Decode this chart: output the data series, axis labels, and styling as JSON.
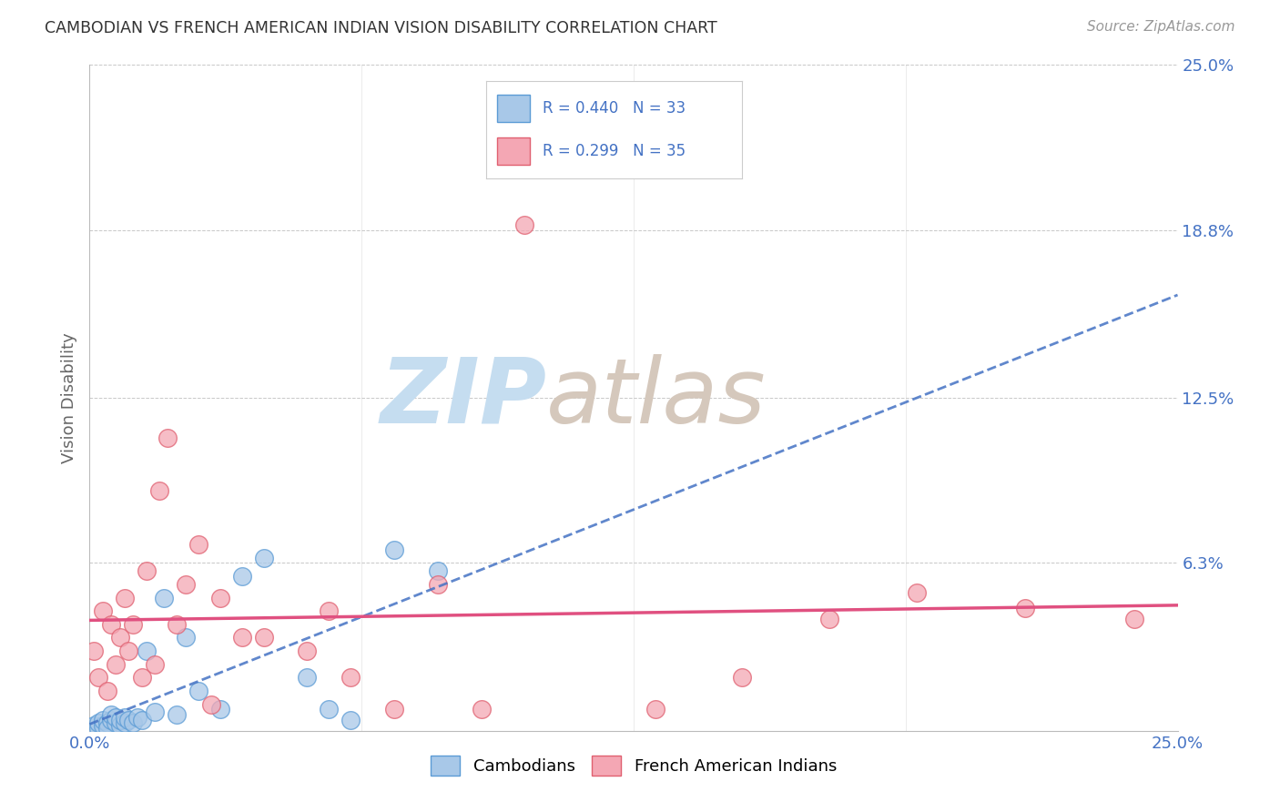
{
  "title": "CAMBODIAN VS FRENCH AMERICAN INDIAN VISION DISABILITY CORRELATION CHART",
  "source": "Source: ZipAtlas.com",
  "ylabel": "Vision Disability",
  "xlim": [
    0.0,
    0.25
  ],
  "ylim": [
    0.0,
    0.25
  ],
  "R_cambodian": 0.44,
  "N_cambodian": 33,
  "R_french": 0.299,
  "N_french": 35,
  "cambodian_color": "#a8c8e8",
  "cambodian_edge": "#5b9bd5",
  "french_color": "#f4a7b4",
  "french_edge": "#e06070",
  "trend_blue_color": "#4472c4",
  "trend_pink_color": "#e05080",
  "watermark_zip_color": "#c8dff0",
  "watermark_atlas_color": "#d0c8c0",
  "background_color": "#ffffff",
  "grid_color": "#c8c8c8",
  "cambodian_x": [
    0.001,
    0.002,
    0.002,
    0.003,
    0.003,
    0.004,
    0.004,
    0.005,
    0.005,
    0.006,
    0.006,
    0.007,
    0.007,
    0.008,
    0.008,
    0.009,
    0.01,
    0.011,
    0.012,
    0.013,
    0.015,
    0.017,
    0.02,
    0.022,
    0.025,
    0.03,
    0.035,
    0.04,
    0.05,
    0.055,
    0.06,
    0.07,
    0.08
  ],
  "cambodian_y": [
    0.002,
    0.001,
    0.003,
    0.002,
    0.004,
    0.003,
    0.001,
    0.004,
    0.006,
    0.003,
    0.005,
    0.002,
    0.004,
    0.003,
    0.005,
    0.004,
    0.003,
    0.005,
    0.004,
    0.03,
    0.007,
    0.05,
    0.006,
    0.035,
    0.015,
    0.008,
    0.058,
    0.065,
    0.02,
    0.008,
    0.004,
    0.068,
    0.06
  ],
  "french_x": [
    0.001,
    0.002,
    0.003,
    0.004,
    0.005,
    0.006,
    0.007,
    0.008,
    0.009,
    0.01,
    0.012,
    0.013,
    0.015,
    0.016,
    0.018,
    0.02,
    0.022,
    0.025,
    0.028,
    0.03,
    0.035,
    0.04,
    0.05,
    0.055,
    0.06,
    0.07,
    0.08,
    0.09,
    0.1,
    0.13,
    0.15,
    0.17,
    0.19,
    0.215,
    0.24
  ],
  "french_y": [
    0.03,
    0.02,
    0.045,
    0.015,
    0.04,
    0.025,
    0.035,
    0.05,
    0.03,
    0.04,
    0.02,
    0.06,
    0.025,
    0.09,
    0.11,
    0.04,
    0.055,
    0.07,
    0.01,
    0.05,
    0.035,
    0.035,
    0.03,
    0.045,
    0.02,
    0.008,
    0.055,
    0.008,
    0.19,
    0.008,
    0.02,
    0.042,
    0.052,
    0.046,
    0.042
  ]
}
